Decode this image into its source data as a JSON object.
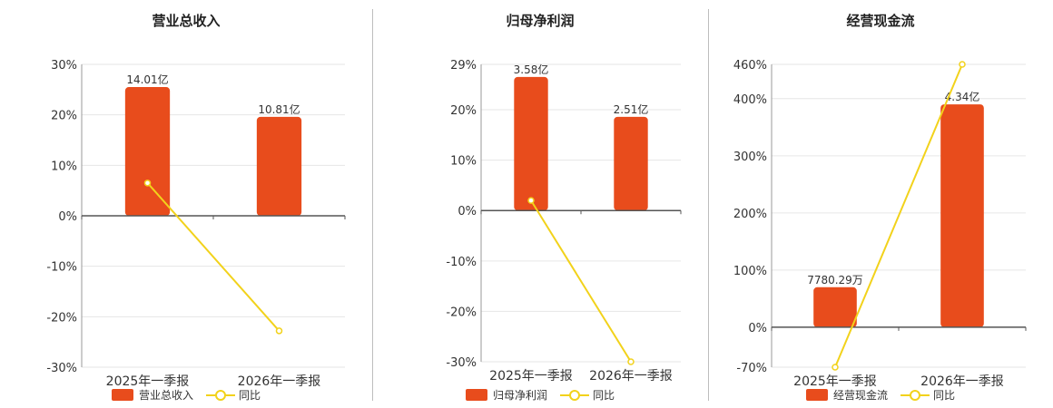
{
  "colors": {
    "bar": "#e84c1c",
    "line": "#f2d21b",
    "grid": "#e6e6e6",
    "axis": "#555555"
  },
  "legend": {
    "yoy_label": "同比"
  },
  "chart_data": [
    {
      "type": "bar",
      "title": "营业总收入",
      "categories": [
        "2025年一季报",
        "2026年一季报"
      ],
      "series": [
        {
          "name": "营业总收入",
          "type": "bar",
          "values_pct": [
            25.5,
            19.6
          ],
          "labels": [
            "14.01亿",
            "10.81亿"
          ]
        },
        {
          "name": "同比",
          "type": "line",
          "values": [
            6.5,
            -22.8
          ]
        }
      ],
      "yticks": [
        30,
        20,
        10,
        0,
        -10,
        -20,
        -30
      ],
      "ytick_labels": [
        "30%",
        "20%",
        "10%",
        "0%",
        "-10%",
        "-20%",
        "-30%"
      ],
      "ylim": [
        -30,
        30
      ],
      "grid": true
    },
    {
      "type": "bar",
      "title": "归母净利润",
      "categories": [
        "2025年一季报",
        "2026年一季报"
      ],
      "series": [
        {
          "name": "归母净利润",
          "type": "bar",
          "values_pct": [
            26.5,
            18.6
          ],
          "labels": [
            "3.58亿",
            "2.51亿"
          ]
        },
        {
          "name": "同比",
          "type": "line",
          "values": [
            2.0,
            -30.0
          ]
        }
      ],
      "yticks": [
        29,
        20,
        10,
        0,
        -10,
        -20,
        -30
      ],
      "ytick_labels": [
        "29%",
        "20%",
        "10%",
        "0%",
        "-10%",
        "-20%",
        "-30%"
      ],
      "ylim": [
        -30,
        29
      ],
      "grid": true
    },
    {
      "type": "bar",
      "title": "经营现金流",
      "categories": [
        "2025年一季报",
        "2026年一季报"
      ],
      "series": [
        {
          "name": "经营现金流",
          "type": "bar",
          "values_pct": [
            70,
            390
          ],
          "labels": [
            "7780.29万",
            "4.34亿"
          ]
        },
        {
          "name": "同比",
          "type": "line",
          "values": [
            -70,
            460
          ]
        }
      ],
      "yticks": [
        460,
        400,
        300,
        200,
        100,
        0,
        -70
      ],
      "ytick_labels": [
        "460%",
        "400%",
        "300%",
        "200%",
        "100%",
        "0%",
        "-70%"
      ],
      "ylim": [
        -70,
        460
      ],
      "grid": true
    }
  ]
}
